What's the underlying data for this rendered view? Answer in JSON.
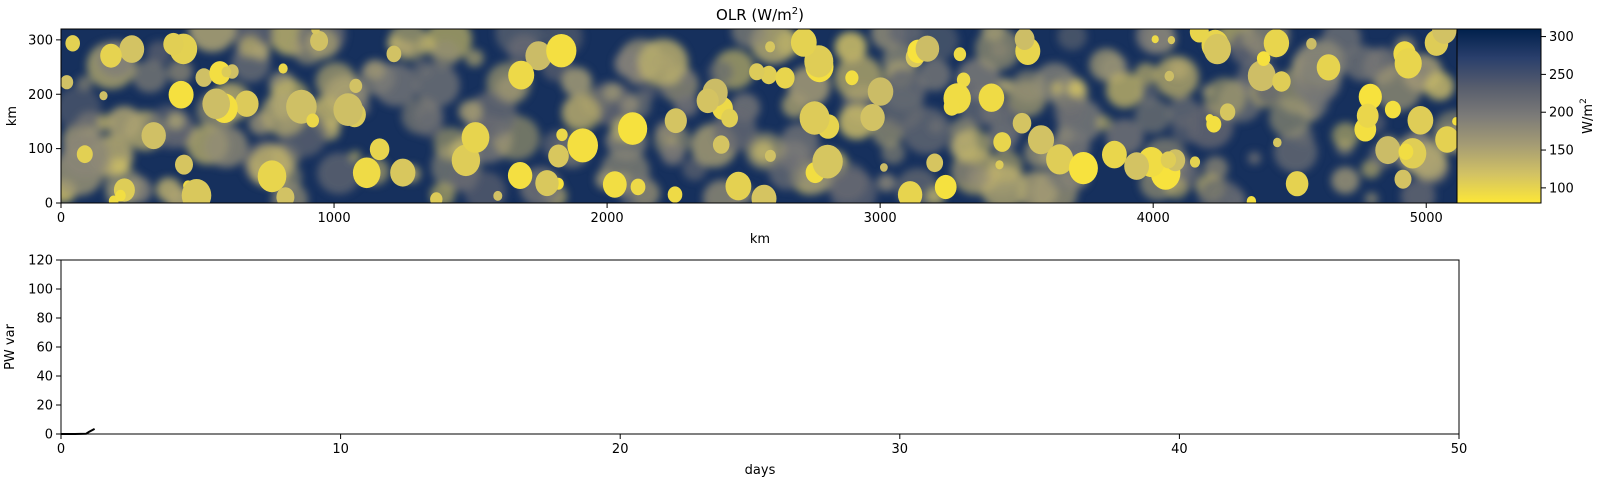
{
  "chart_data": [
    {
      "type": "heatmap",
      "title": "OLR (W/m",
      "title_sup": "2",
      "title_suffix": ")",
      "xlabel": "km",
      "ylabel": "km",
      "xlim": [
        0,
        5120
      ],
      "ylim": [
        0,
        320
      ],
      "xticks": [
        0,
        1000,
        2000,
        3000,
        4000,
        5000
      ],
      "yticks": [
        0,
        100,
        200,
        300
      ],
      "colorbar": {
        "label": "W/m",
        "label_sup": "2",
        "range": [
          80,
          310
        ],
        "ticks": [
          100,
          150,
          200,
          250,
          300
        ],
        "colormap": "cividis_r",
        "colors": [
          "#fde737",
          "#d2c264",
          "#a59c74",
          "#7c7b78",
          "#575d6d",
          "#2a3f6c",
          "#00204c"
        ]
      },
      "background_value": 290,
      "grid": false
    },
    {
      "type": "line",
      "xlabel": "days",
      "ylabel": "PW var",
      "xlim": [
        0,
        50
      ],
      "ylim": [
        0,
        120
      ],
      "xticks": [
        0,
        10,
        20,
        30,
        40,
        50
      ],
      "yticks": [
        0,
        20,
        40,
        60,
        80,
        100,
        120
      ],
      "line_color": "#000000",
      "series": [
        {
          "x": [
            0,
            0.5,
            0.9,
            1.0,
            1.2
          ],
          "y": [
            0,
            0,
            0.2,
            1.5,
            3.5
          ]
        }
      ],
      "grid": false
    }
  ]
}
